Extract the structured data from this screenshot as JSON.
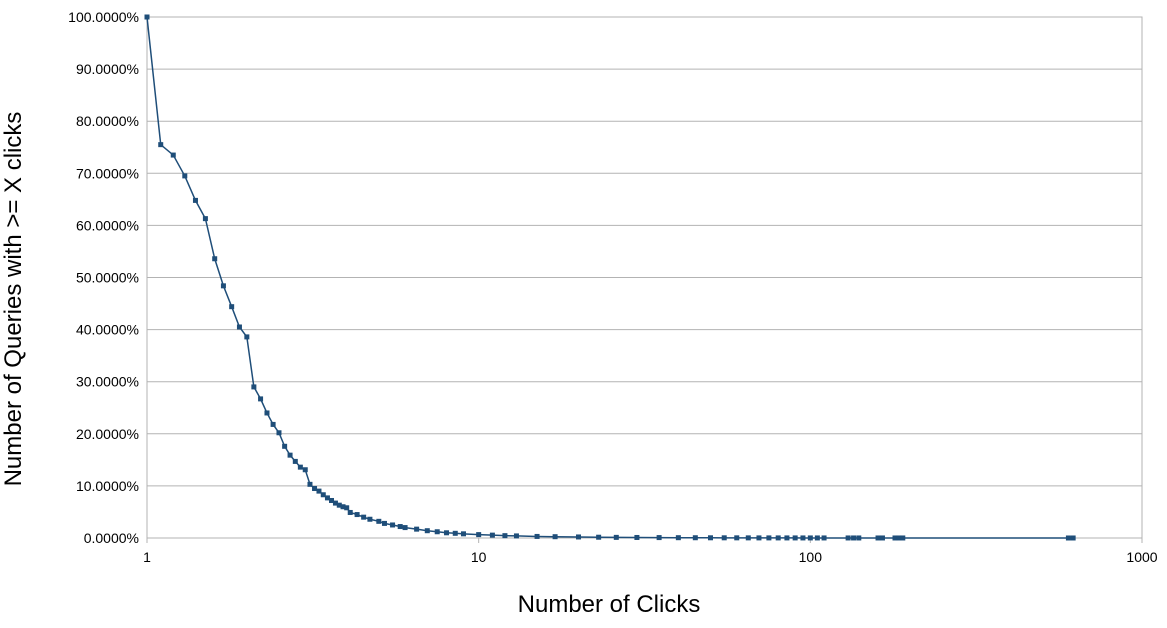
{
  "chart_data": {
    "type": "line",
    "title": "",
    "xlabel": "Number of Clicks",
    "ylabel": "Number of Queries with >= X clicks",
    "x_scale": "log",
    "xlim": [
      1,
      1000
    ],
    "ylim": [
      0,
      100
    ],
    "grid": "horizontal",
    "legend": "none",
    "x_ticks": [
      "1",
      "10",
      "100",
      "1000"
    ],
    "y_ticks": [
      "0.0000%",
      "10.0000%",
      "20.0000%",
      "30.0000%",
      "40.0000%",
      "50.0000%",
      "60.0000%",
      "70.0000%",
      "80.0000%",
      "90.0000%",
      "100.0000%"
    ],
    "series": [
      {
        "color": "#1f4e79",
        "points": [
          [
            1,
            100
          ],
          [
            1.1,
            75.5
          ],
          [
            1.2,
            73.5
          ],
          [
            1.3,
            69.5
          ],
          [
            1.4,
            64.8
          ],
          [
            1.5,
            61.3
          ],
          [
            1.6,
            53.6
          ],
          [
            1.7,
            48.4
          ],
          [
            1.8,
            44.4
          ],
          [
            1.9,
            40.5
          ],
          [
            2.0,
            38.6
          ],
          [
            2.1,
            29.0
          ],
          [
            2.2,
            26.7
          ],
          [
            2.3,
            24.0
          ],
          [
            2.4,
            21.8
          ],
          [
            2.5,
            20.2
          ],
          [
            2.6,
            17.6
          ],
          [
            2.7,
            15.9
          ],
          [
            2.8,
            14.7
          ],
          [
            2.9,
            13.6
          ],
          [
            3.0,
            13.1
          ],
          [
            3.1,
            10.3
          ],
          [
            3.2,
            9.5
          ],
          [
            3.3,
            9.0
          ],
          [
            3.4,
            8.3
          ],
          [
            3.5,
            7.7
          ],
          [
            3.6,
            7.2
          ],
          [
            3.7,
            6.7
          ],
          [
            3.8,
            6.3
          ],
          [
            3.9,
            6.0
          ],
          [
            4.0,
            5.8
          ],
          [
            4.1,
            4.9
          ],
          [
            4.3,
            4.5
          ],
          [
            4.5,
            4.0
          ],
          [
            4.7,
            3.6
          ],
          [
            5.0,
            3.2
          ],
          [
            5.2,
            2.8
          ],
          [
            5.5,
            2.5
          ],
          [
            5.8,
            2.2
          ],
          [
            6.0,
            2.0
          ],
          [
            6.5,
            1.7
          ],
          [
            7.0,
            1.4
          ],
          [
            7.5,
            1.2
          ],
          [
            8.0,
            1.0
          ],
          [
            8.5,
            0.9
          ],
          [
            9.0,
            0.8
          ],
          [
            10,
            0.65
          ],
          [
            11,
            0.55
          ],
          [
            12,
            0.45
          ],
          [
            13,
            0.4
          ],
          [
            15,
            0.3
          ],
          [
            17,
            0.25
          ],
          [
            20,
            0.2
          ],
          [
            23,
            0.15
          ],
          [
            26,
            0.12
          ],
          [
            30,
            0.1
          ],
          [
            35,
            0.08
          ],
          [
            40,
            0.06
          ],
          [
            45,
            0.05
          ],
          [
            50,
            0.04
          ],
          [
            55,
            0.035
          ],
          [
            60,
            0.03
          ],
          [
            65,
            0.025
          ],
          [
            70,
            0.02
          ],
          [
            75,
            0.02
          ],
          [
            80,
            0.018
          ],
          [
            85,
            0.015
          ],
          [
            90,
            0.015
          ],
          [
            95,
            0.012
          ],
          [
            100,
            0.012
          ],
          [
            105,
            0.01
          ],
          [
            110,
            0.01
          ],
          [
            130,
            0.008
          ],
          [
            135,
            0.008
          ],
          [
            140,
            0.007
          ],
          [
            160,
            0.006
          ],
          [
            165,
            0.006
          ],
          [
            180,
            0.005
          ],
          [
            185,
            0.005
          ],
          [
            190,
            0.005
          ],
          [
            600,
            0.002
          ],
          [
            620,
            0.002
          ]
        ]
      }
    ]
  }
}
